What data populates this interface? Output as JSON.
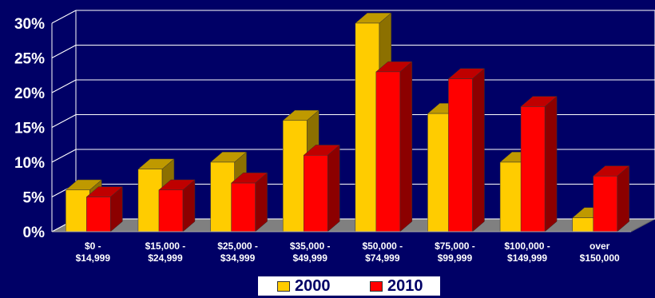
{
  "chart_data": {
    "type": "bar",
    "categories": [
      [
        "$0 -",
        "$14,999"
      ],
      [
        "$15,000 -",
        "$24,999"
      ],
      [
        "$25,000 -",
        "$34,999"
      ],
      [
        "$35,000 -",
        "$49,999"
      ],
      [
        "$50,000 -",
        "$74,999"
      ],
      [
        "$75,000 -",
        "$99,999"
      ],
      [
        "$100,000 -",
        "$149,999"
      ],
      [
        "over",
        "$150,000"
      ]
    ],
    "series": [
      {
        "name": "2000",
        "values": [
          6,
          9,
          10,
          16,
          30,
          17,
          10,
          2
        ],
        "color": "#FFCC00"
      },
      {
        "name": "2010",
        "values": [
          5,
          6,
          7,
          11,
          23,
          22,
          18,
          8
        ],
        "color": "#FF0000"
      }
    ],
    "y_ticks": [
      "0%",
      "5%",
      "10%",
      "15%",
      "20%",
      "25%",
      "30%"
    ],
    "ylim": [
      0,
      30
    ],
    "grid": true,
    "legend_position": "bottom",
    "background_color": "#000066",
    "gridline_color": "#FFFFFF",
    "floor_color": "#808080"
  }
}
